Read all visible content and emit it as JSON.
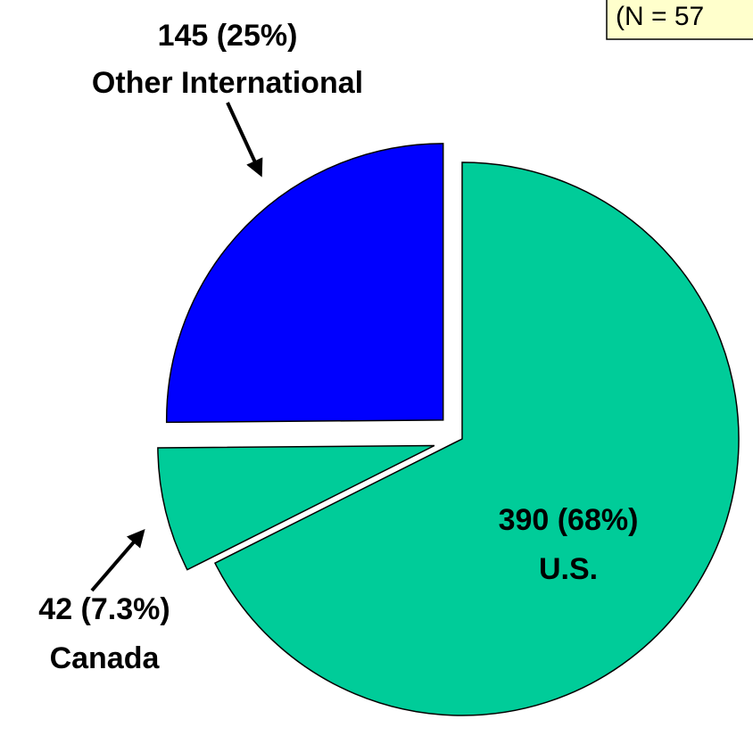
{
  "chart_data": {
    "type": "pie",
    "categories": [
      "U.S.",
      "Canada",
      "Other International"
    ],
    "values": [
      390,
      42,
      145
    ],
    "value_labels": [
      "390 (68%)",
      "42 (7.3%)",
      "145 (25%)"
    ],
    "colors": [
      "#00cc99",
      "#00cc99",
      "#0000ff"
    ],
    "annotation": "(N = 57"
  }
}
